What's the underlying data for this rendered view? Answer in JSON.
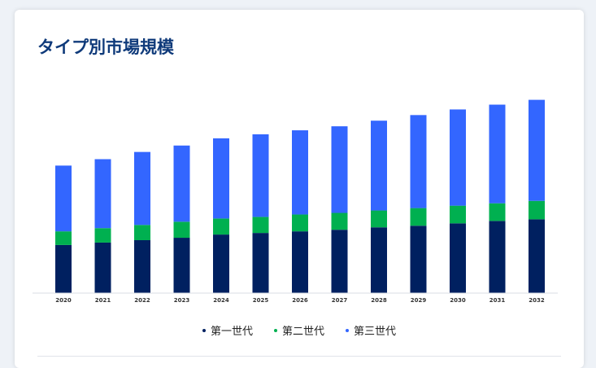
{
  "header": {
    "title": "タイプ別市場規模"
  },
  "chart_data": {
    "type": "bar",
    "stacked": true,
    "categories": [
      "2020",
      "2021",
      "2022",
      "2023",
      "2024",
      "2025",
      "2026",
      "2027",
      "2028",
      "2029",
      "2030",
      "2031",
      "2032"
    ],
    "series": [
      {
        "name": "第一世代",
        "color": "#002060",
        "values": [
          60,
          63,
          66,
          69,
          73,
          75,
          77,
          79,
          82,
          84,
          87,
          90,
          92
        ]
      },
      {
        "name": "第二世代",
        "color": "#00b050",
        "values": [
          17,
          18,
          19,
          20,
          20,
          20,
          21,
          21,
          21,
          22,
          22,
          22,
          23
        ]
      },
      {
        "name": "第三世代",
        "color": "#3366ff",
        "values": [
          82,
          86,
          91,
          95,
          100,
          103,
          105,
          108,
          112,
          116,
          120,
          123,
          126
        ]
      }
    ],
    "legend_position": "bottom-center",
    "grid": false
  }
}
